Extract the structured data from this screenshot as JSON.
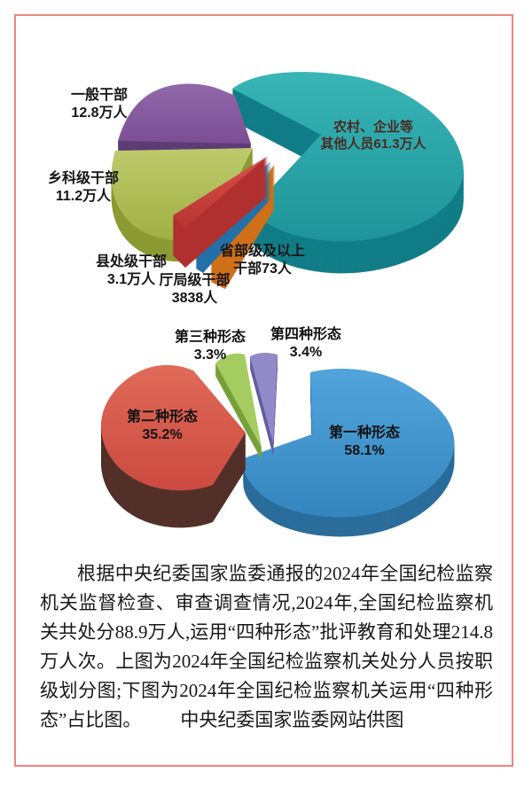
{
  "frame": {
    "border_color": "#f1837f",
    "background": "#ffffff"
  },
  "chart_data": [
    {
      "type": "pie",
      "style": "3d-exploded",
      "labels_on_chart": true,
      "legend": "none",
      "slices": [
        {
          "label": "农村、企业等其他人员",
          "value": 61.3,
          "unit": "万人",
          "value_text": "61.3万人",
          "display": [
            "农村、企业等",
            "其他人员61.3万人"
          ],
          "color": "#2aa6a9"
        },
        {
          "label": "一般干部",
          "value": 12.8,
          "unit": "万人",
          "value_text": "12.8万人",
          "display": [
            "一般干部",
            "12.8万人"
          ],
          "color": "#8760a2"
        },
        {
          "label": "乡科级干部",
          "value": 11.2,
          "unit": "万人",
          "value_text": "11.2万人",
          "display": [
            "乡科级干部",
            "11.2万人"
          ],
          "color": "#b1c05a"
        },
        {
          "label": "县处级干部",
          "value": 3.1,
          "unit": "万人",
          "value_text": "3.1万人",
          "display": [
            "县处级干部",
            "3.1万人"
          ],
          "color": "#c94540"
        },
        {
          "label": "厅局级干部",
          "value": 3838,
          "unit": "人",
          "value_text": "3838人",
          "display": [
            "厅局级干部",
            "3838人"
          ],
          "color": "#2e82bb"
        },
        {
          "label": "省部级及以上干部",
          "value": 73,
          "unit": "人",
          "value_text": "73人",
          "display": [
            "省部级及以上",
            "干部73人"
          ],
          "color": "#e28c35"
        }
      ]
    },
    {
      "type": "pie",
      "style": "3d-exploded",
      "labels_on_chart": true,
      "legend": "none",
      "slices": [
        {
          "label": "第一种形态",
          "value": 58.1,
          "unit": "%",
          "value_text": "58.1%",
          "display": [
            "第一种形态",
            "58.1%"
          ],
          "color": "#3f93cd"
        },
        {
          "label": "第二种形态",
          "value": 35.2,
          "unit": "%",
          "value_text": "35.2%",
          "display": [
            "第二种形态",
            "35.2%"
          ],
          "color": "#d5564a"
        },
        {
          "label": "第三种形态",
          "value": 3.3,
          "unit": "%",
          "value_text": "3.3%",
          "display": [
            "第三种形态",
            "3.3%"
          ],
          "color": "#9cc658"
        },
        {
          "label": "第四种形态",
          "value": 3.4,
          "unit": "%",
          "value_text": "3.4%",
          "display": [
            "第四种形态",
            "3.4%"
          ],
          "color": "#8b83c5"
        }
      ]
    }
  ],
  "caption": {
    "paragraph": "根据中央纪委国家监委通报的2024年全国纪检监察机关监督检查、审查调查情况,2024年,全国纪检监察机关共处分88.9万人,运用“四种形态”批评教育和处理214.8万人次。上图为2024年全国纪检监察机关处分人员按职级划分图;下图为2024年全国纪检监察机关运用“四种形态”占比图。",
    "credit": "中央纪委国家监委网站供图"
  }
}
